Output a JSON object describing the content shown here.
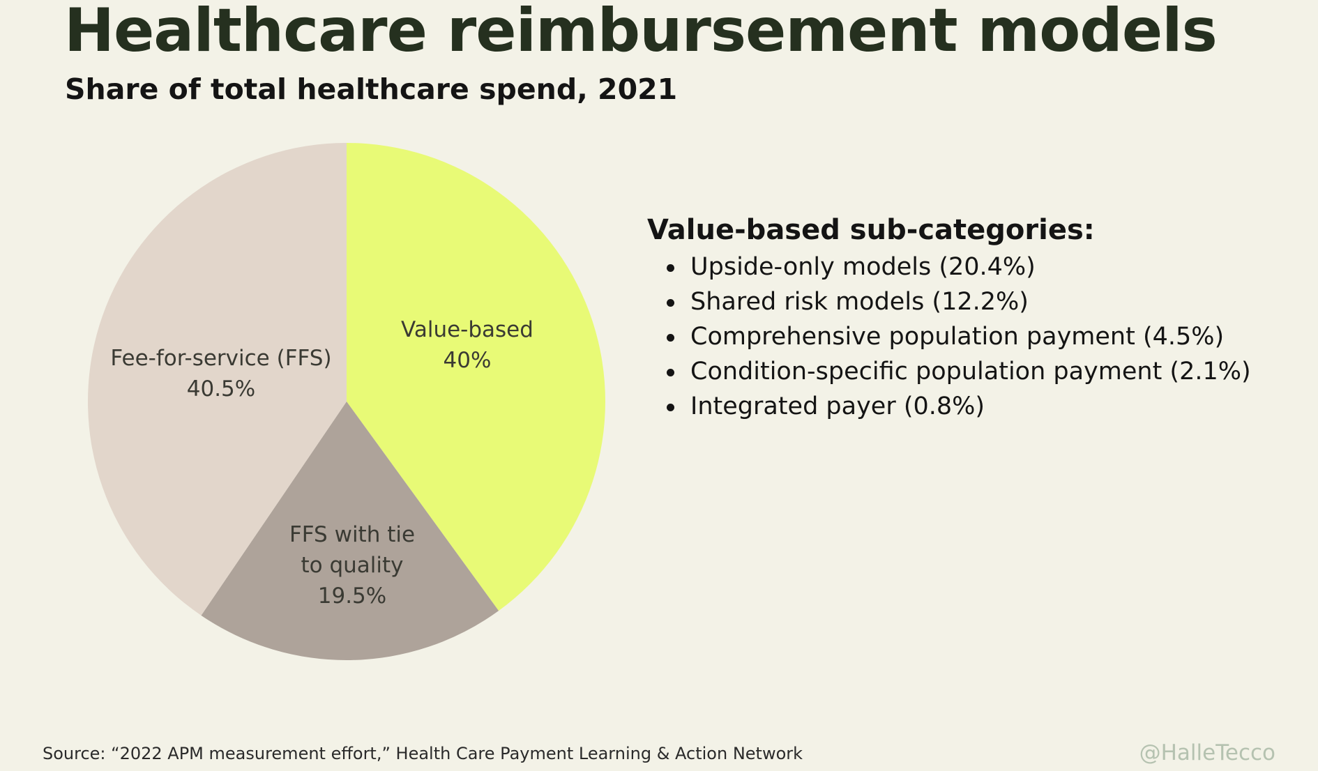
{
  "title": "Healthcare reimbursement models",
  "subtitle": "Share of total healthcare spend, 2021",
  "chart_data": {
    "type": "pie",
    "title": "Healthcare reimbursement models",
    "subtitle": "Share of total healthcare spend, 2021",
    "slices": [
      {
        "name": "Value-based",
        "value": 40,
        "value_label": "40%",
        "label_lines": [
          "Value-based"
        ],
        "color": "#e8fa76"
      },
      {
        "name": "FFS with tie to quality",
        "value": 19.5,
        "value_label": "19.5%",
        "label_lines": [
          "FFS with tie",
          "to quality"
        ],
        "color": "#aea39a"
      },
      {
        "name": "Fee-for-service (FFS)",
        "value": 40.5,
        "value_label": "40.5%",
        "label_lines": [
          "Fee-for-service (FFS)"
        ],
        "color": "#e2d6cb"
      }
    ],
    "start_angle": "12 o'clock",
    "direction": "clockwise",
    "legend": "none"
  },
  "subcategories": {
    "heading": "Value-based sub-categories:",
    "items": [
      "Upside-only models (20.4%)",
      "Shared risk models (12.2%)",
      "Comprehensive population payment (4.5%)",
      "Condition-specific population payment (2.1%)",
      "Integrated payer (0.8%)"
    ]
  },
  "source": "Source: “2022 APM measurement effort,” Health Care Payment Learning & Action Network",
  "handle": "@HalleTecco"
}
